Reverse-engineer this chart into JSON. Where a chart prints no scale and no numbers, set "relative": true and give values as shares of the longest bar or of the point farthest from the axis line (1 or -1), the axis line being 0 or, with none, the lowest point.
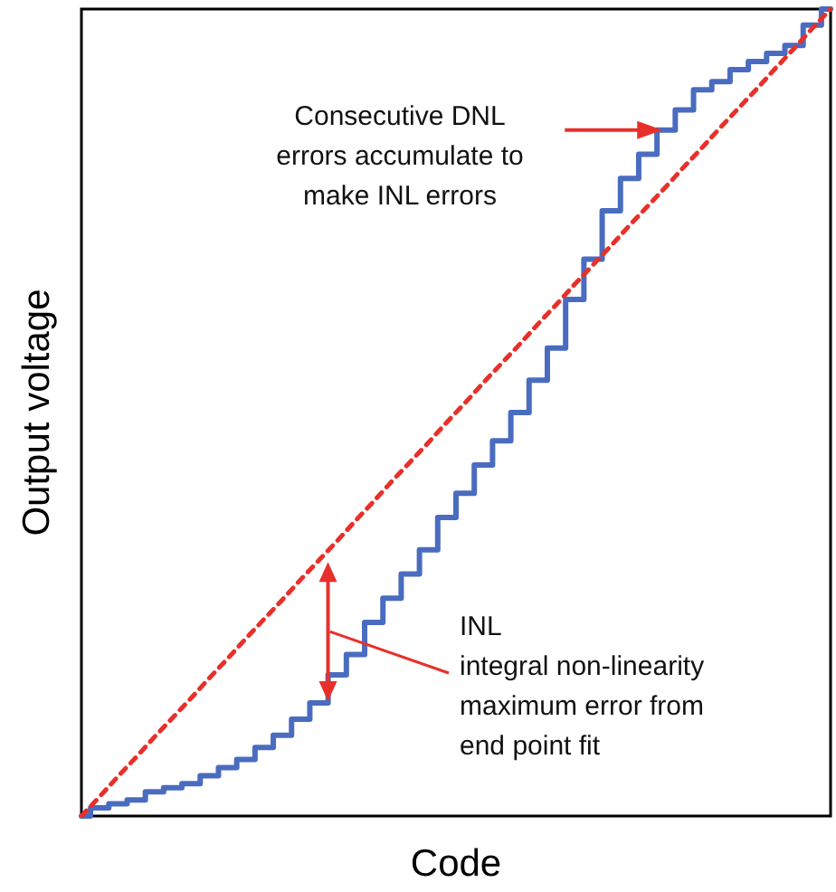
{
  "chart_data": {
    "type": "step",
    "relative": true,
    "xlabel": "Code",
    "ylabel": "Output voltage",
    "categories": [
      null,
      null,
      null,
      null,
      null,
      null,
      null,
      null,
      null,
      null,
      null,
      null,
      null,
      null,
      null,
      null,
      null,
      null,
      null,
      null,
      null,
      null,
      null,
      null,
      null,
      null,
      null,
      null,
      null,
      null,
      null,
      null,
      null,
      null,
      null,
      null,
      null,
      null,
      null,
      null,
      null,
      null
    ],
    "series": [
      {
        "color": "#4a6cc0",
        "line_style": "solid",
        "values": [
          0,
          0.01,
          0.015,
          0.02,
          0.03,
          0.035,
          0.04,
          0.05,
          0.06,
          0.07,
          0.085,
          0.1,
          0.12,
          0.14,
          0.175,
          0.2,
          0.24,
          0.27,
          0.3,
          0.33,
          0.37,
          0.4,
          0.435,
          0.465,
          0.5,
          0.54,
          0.58,
          0.64,
          0.69,
          0.75,
          0.79,
          0.82,
          0.85,
          0.875,
          0.9,
          0.91,
          0.925,
          0.935,
          0.945,
          0.955,
          0.98,
          1
        ]
      },
      {
        "type": "line",
        "color": "#e8302a",
        "line_style": "dashed",
        "values": [
          0,
          0.024,
          0.049,
          0.073,
          0.098,
          0.122,
          0.146,
          0.171,
          0.195,
          0.22,
          0.244,
          0.268,
          0.293,
          0.317,
          0.341,
          0.366,
          0.39,
          0.415,
          0.439,
          0.463,
          0.488,
          0.512,
          0.537,
          0.561,
          0.585,
          0.61,
          0.634,
          0.659,
          0.683,
          0.707,
          0.732,
          0.756,
          0.78,
          0.805,
          0.829,
          0.854,
          0.878,
          0.902,
          0.927,
          0.951,
          0.976,
          1
        ]
      }
    ],
    "annotations": [
      "Consecutive DNL\nerrors accumulate to\nmake INL errors",
      "INL\nintegral non-linearity\nmaximum error from\nend point fit"
    ],
    "marker": "none",
    "grid": false
  }
}
